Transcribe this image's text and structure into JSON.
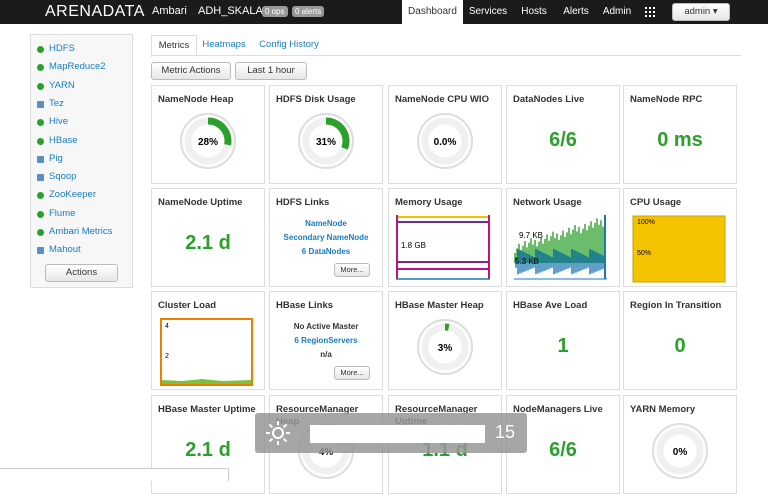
{
  "nav": {
    "logo": "ARENADATA",
    "app": "Ambari",
    "cluster": "ADH_SKALA",
    "ops": "0 ops",
    "alerts": "0 alerts",
    "tabs": [
      "Dashboard",
      "Services",
      "Hosts",
      "Alerts",
      "Admin"
    ],
    "user": "admin"
  },
  "sidebar": {
    "services": [
      {
        "name": "HDFS",
        "status": "ok"
      },
      {
        "name": "MapReduce2",
        "status": "ok"
      },
      {
        "name": "YARN",
        "status": "ok"
      },
      {
        "name": "Tez",
        "status": "client"
      },
      {
        "name": "Hive",
        "status": "ok"
      },
      {
        "name": "HBase",
        "status": "ok"
      },
      {
        "name": "Pig",
        "status": "client"
      },
      {
        "name": "Sqoop",
        "status": "client"
      },
      {
        "name": "ZooKeeper",
        "status": "ok"
      },
      {
        "name": "Flume",
        "status": "ok"
      },
      {
        "name": "Ambari Metrics",
        "status": "ok"
      },
      {
        "name": "Mahout",
        "status": "client"
      }
    ],
    "actions": "Actions"
  },
  "tabs": [
    "Metrics",
    "Heatmaps",
    "Config History"
  ],
  "buttons": [
    "Metric Actions",
    "Last 1 hour"
  ],
  "widgets": [
    {
      "title": "NameNode Heap",
      "kind": "gauge",
      "value": 28,
      "label": "28%"
    },
    {
      "title": "HDFS Disk Usage",
      "kind": "gauge",
      "value": 31,
      "label": "31%"
    },
    {
      "title": "NameNode CPU WIO",
      "kind": "gauge",
      "value": 0,
      "label": "0.0%"
    },
    {
      "title": "DataNodes Live",
      "kind": "text",
      "text": "6/6"
    },
    {
      "title": "NameNode RPC",
      "kind": "text",
      "text": "0 ms"
    },
    {
      "title": "NameNode Uptime",
      "kind": "text",
      "text": "2.1 d"
    },
    {
      "title": "HDFS Links",
      "kind": "links",
      "items": [
        {
          "text": "NameNode",
          "link": true
        },
        {
          "text": "Secondary NameNode",
          "link": true
        },
        {
          "text": "6 DataNodes",
          "link": true
        }
      ],
      "more": "More..."
    },
    {
      "title": "Memory Usage",
      "kind": "memory",
      "labels": [
        "1.8 GB"
      ]
    },
    {
      "title": "Network Usage",
      "kind": "network",
      "labels": [
        "9.7 KB",
        "5.3 KB"
      ]
    },
    {
      "title": "CPU Usage",
      "kind": "cpu",
      "labels": [
        "100%",
        "50%"
      ]
    },
    {
      "title": "Cluster Load",
      "kind": "load",
      "labels": [
        "4",
        "2"
      ]
    },
    {
      "title": "HBase Links",
      "kind": "links",
      "items": [
        {
          "text": "No Active Master",
          "link": false
        },
        {
          "text": "6 RegionServers",
          "link": true
        },
        {
          "text": "n/a",
          "link": false
        }
      ],
      "more": "More..."
    },
    {
      "title": "HBase Master Heap",
      "kind": "gauge",
      "value": 3,
      "label": "3%"
    },
    {
      "title": "HBase Ave Load",
      "kind": "text",
      "text": "1"
    },
    {
      "title": "Region In Transition",
      "kind": "text",
      "text": "0"
    },
    {
      "title": "HBase Master Uptime",
      "kind": "text",
      "text": "2.1 d"
    },
    {
      "title": "ResourceManager Heap",
      "kind": "gauge",
      "value": 4,
      "label": "4%"
    },
    {
      "title": "ResourceManager Uptime",
      "kind": "text",
      "text": "1.1 d"
    },
    {
      "title": "NodeManagers Live",
      "kind": "text",
      "text": "6/6"
    },
    {
      "title": "YARN Memory",
      "kind": "gauge",
      "value": 0,
      "label": "0%"
    }
  ],
  "overlay": {
    "level": 15
  }
}
